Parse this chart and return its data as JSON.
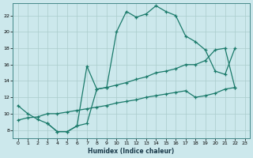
{
  "xlabel": "Humidex (Indice chaleur)",
  "bg_color": "#cce8ec",
  "grid_color": "#aacccc",
  "line_color": "#1a7a6a",
  "xlim": [
    -0.5,
    23.5
  ],
  "ylim": [
    7,
    23.5
  ],
  "xticks": [
    0,
    1,
    2,
    3,
    4,
    5,
    6,
    7,
    8,
    9,
    10,
    11,
    12,
    13,
    14,
    15,
    16,
    17,
    18,
    19,
    20,
    21,
    22,
    23
  ],
  "yticks": [
    8,
    10,
    12,
    14,
    16,
    18,
    20,
    22
  ],
  "line1_x": [
    0,
    1,
    2,
    3,
    4,
    5,
    6,
    7,
    8,
    9,
    10,
    11,
    12,
    13,
    14,
    15,
    16,
    17,
    18,
    19,
    20,
    21,
    22
  ],
  "line1_y": [
    11.0,
    10.0,
    9.3,
    8.8,
    7.8,
    7.8,
    8.5,
    8.8,
    13.0,
    13.2,
    20.0,
    22.5,
    21.8,
    22.2,
    23.2,
    22.5,
    22.0,
    19.5,
    18.8,
    17.8,
    15.2,
    14.8,
    18.0
  ],
  "line2_x": [
    3,
    4,
    5,
    6,
    7,
    8,
    9,
    10,
    11,
    12,
    13,
    14,
    15,
    16,
    17,
    18,
    19,
    20,
    21,
    22
  ],
  "line2_y": [
    8.8,
    7.8,
    7.8,
    8.5,
    15.8,
    13.0,
    13.2,
    13.5,
    13.8,
    14.2,
    14.5,
    15.0,
    15.2,
    15.5,
    16.0,
    16.0,
    16.5,
    17.8,
    18.0,
    13.2
  ],
  "line3_x": [
    0,
    1,
    2,
    3,
    4,
    5,
    6,
    7,
    8,
    9,
    10,
    11,
    12,
    13,
    14,
    15,
    16,
    17,
    18,
    19,
    20,
    21,
    22
  ],
  "line3_y": [
    9.2,
    9.5,
    9.6,
    10.0,
    10.0,
    10.2,
    10.4,
    10.6,
    10.8,
    11.0,
    11.3,
    11.5,
    11.7,
    12.0,
    12.2,
    12.4,
    12.6,
    12.8,
    12.0,
    12.2,
    12.5,
    13.0,
    13.2
  ]
}
